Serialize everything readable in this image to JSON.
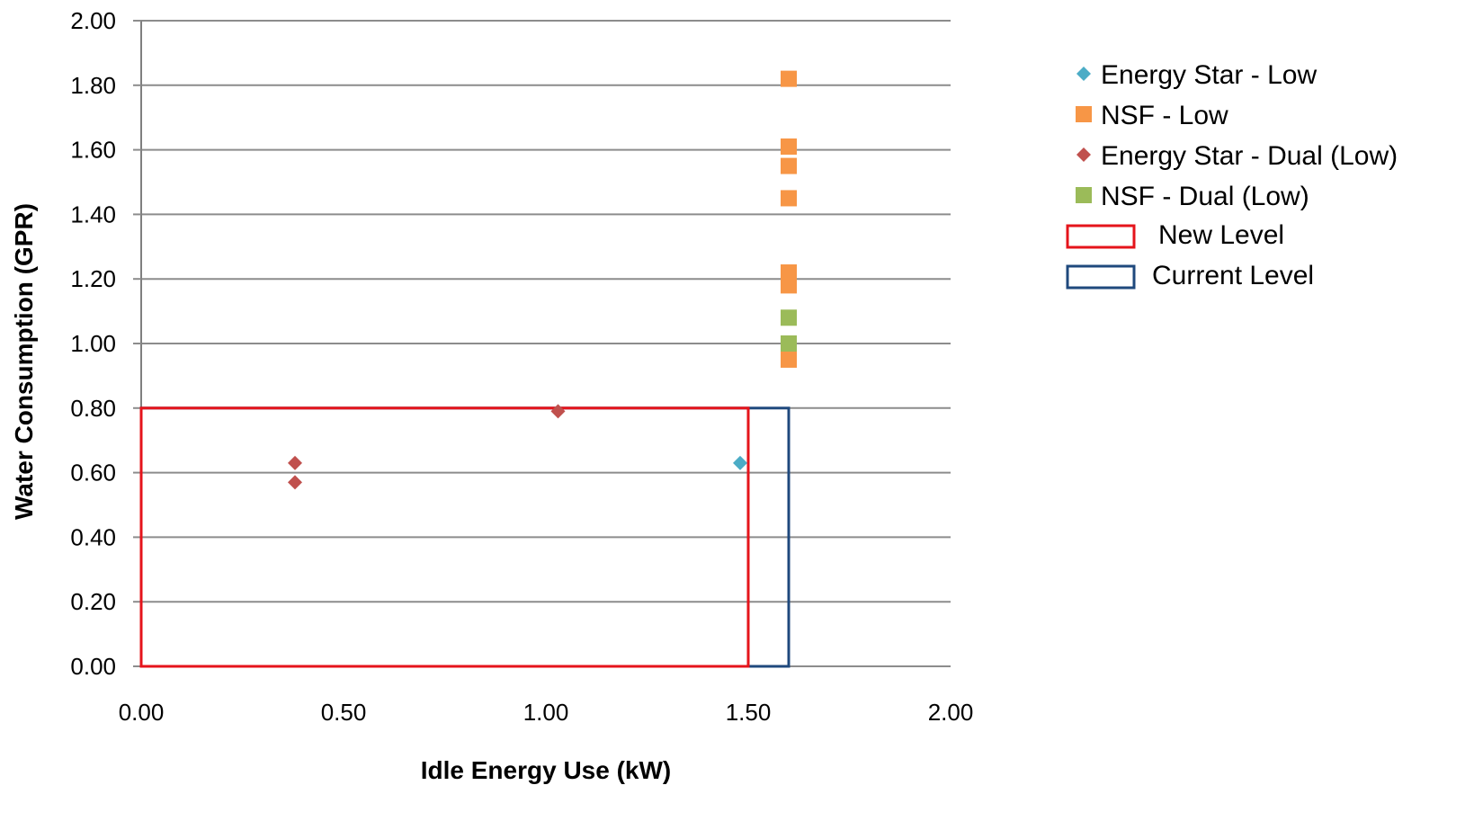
{
  "chart_data": {
    "type": "scatter",
    "title": "",
    "xlabel": "Idle Energy Use (kW)",
    "ylabel": "Water Consumption (GPR)",
    "xlim": [
      0,
      2
    ],
    "ylim": [
      0,
      2
    ],
    "x_ticks": [
      "0.00",
      "0.50",
      "1.00",
      "1.50",
      "2.00"
    ],
    "y_ticks": [
      "0.00",
      "0.20",
      "0.40",
      "0.60",
      "0.80",
      "1.00",
      "1.20",
      "1.40",
      "1.60",
      "1.80",
      "2.00"
    ],
    "grid": "horizontal",
    "legend_position": "right",
    "series": [
      {
        "name": "Energy Star - Low",
        "marker": "diamond",
        "color": "#4BACC6",
        "points": [
          {
            "x": 1.48,
            "y": 0.63
          }
        ]
      },
      {
        "name": "NSF - Low",
        "marker": "square",
        "color": "#F79646",
        "points": [
          {
            "x": 1.6,
            "y": 1.82
          },
          {
            "x": 1.6,
            "y": 1.61
          },
          {
            "x": 1.6,
            "y": 1.55
          },
          {
            "x": 1.6,
            "y": 1.45
          },
          {
            "x": 1.6,
            "y": 1.22
          },
          {
            "x": 1.6,
            "y": 1.18
          },
          {
            "x": 1.6,
            "y": 0.95
          }
        ]
      },
      {
        "name": "Energy Star - Dual (Low)",
        "marker": "diamond",
        "color": "#C0504D",
        "points": [
          {
            "x": 0.38,
            "y": 0.63
          },
          {
            "x": 0.38,
            "y": 0.57
          },
          {
            "x": 1.03,
            "y": 0.79
          }
        ]
      },
      {
        "name": "NSF - Dual (Low)",
        "marker": "square",
        "color": "#9BBB59",
        "points": [
          {
            "x": 1.6,
            "y": 1.08
          },
          {
            "x": 1.6,
            "y": 1.0
          }
        ]
      }
    ],
    "regions": [
      {
        "name": "New Level",
        "color": "#E5141B",
        "x0": 0,
        "x1": 1.5,
        "y0": 0,
        "y1": 0.8
      },
      {
        "name": "Current Level",
        "color": "#1F497D",
        "x0": 0,
        "x1": 1.6,
        "y0": 0,
        "y1": 0.8
      }
    ]
  }
}
